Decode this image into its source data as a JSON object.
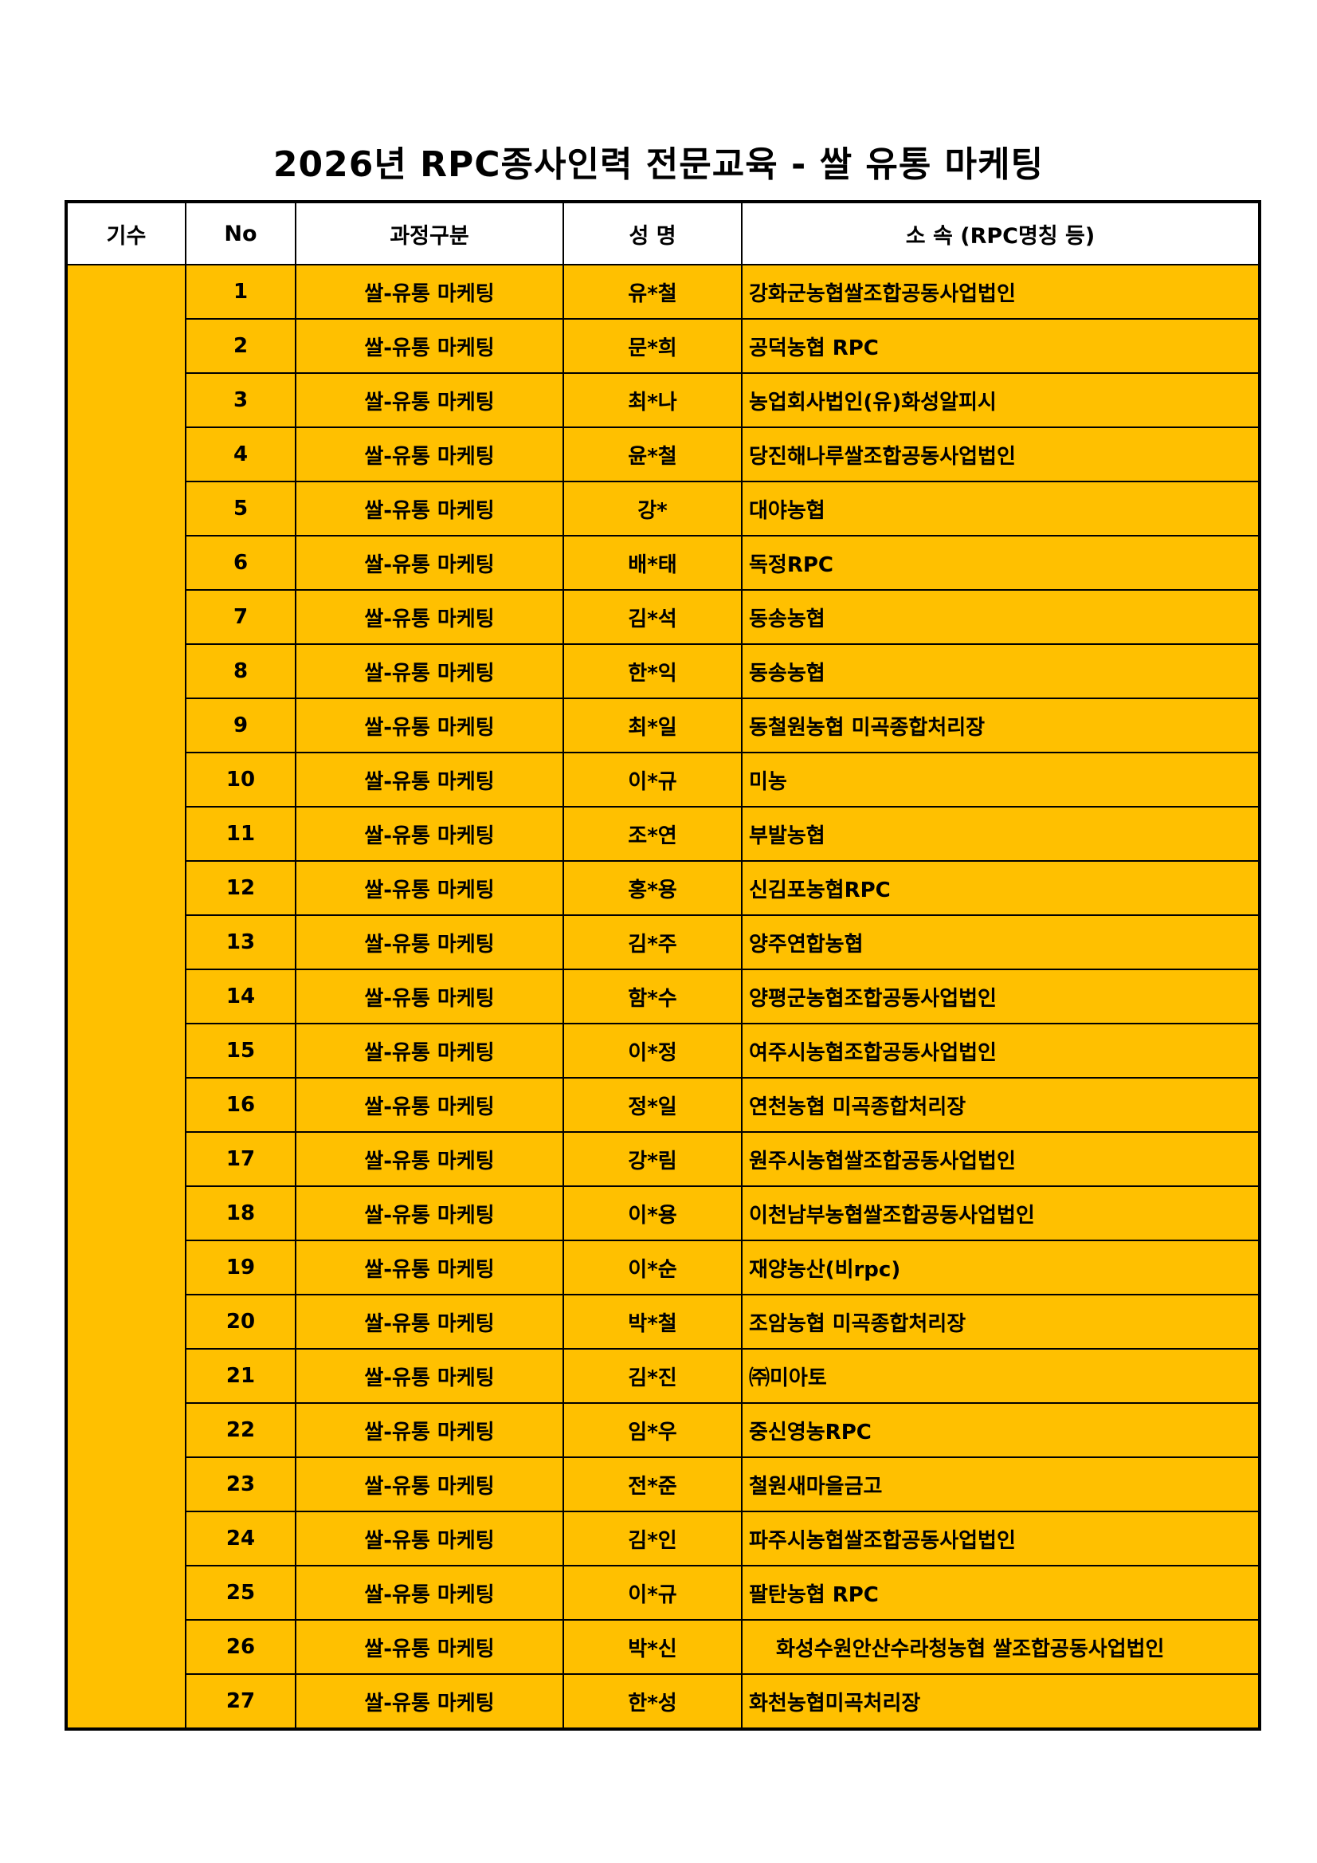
{
  "title": "2026년 RPC종사인력 전문교육 - 쌀 유통 마케팅",
  "table": {
    "headers": [
      "기수",
      "No",
      "과정구분",
      "성 명",
      "소 속 (RPC명칭 등)"
    ],
    "cohort": "",
    "highlight_color": "#FFC000",
    "rows": [
      {
        "no": "1",
        "course": "쌀-유통 마케팅",
        "name": "유*철",
        "affiliation": "강화군농협쌀조합공동사업법인"
      },
      {
        "no": "2",
        "course": "쌀-유통 마케팅",
        "name": "문*희",
        "affiliation": "공덕농협 RPC"
      },
      {
        "no": "3",
        "course": "쌀-유통 마케팅",
        "name": "최*나",
        "affiliation": "농업회사법인(유)화성알피시"
      },
      {
        "no": "4",
        "course": "쌀-유통 마케팅",
        "name": "윤*철",
        "affiliation": "당진해나루쌀조합공동사업법인"
      },
      {
        "no": "5",
        "course": "쌀-유통 마케팅",
        "name": "강*",
        "affiliation": "대야농협"
      },
      {
        "no": "6",
        "course": "쌀-유통 마케팅",
        "name": "배*태",
        "affiliation": "독정RPC"
      },
      {
        "no": "7",
        "course": "쌀-유통 마케팅",
        "name": "김*석",
        "affiliation": "동송농협"
      },
      {
        "no": "8",
        "course": "쌀-유통 마케팅",
        "name": "한*익",
        "affiliation": "동송농협"
      },
      {
        "no": "9",
        "course": "쌀-유통 마케팅",
        "name": "최*일",
        "affiliation": "동철원농협 미곡종합처리장"
      },
      {
        "no": "10",
        "course": "쌀-유통 마케팅",
        "name": "이*규",
        "affiliation": "미농"
      },
      {
        "no": "11",
        "course": "쌀-유통 마케팅",
        "name": "조*연",
        "affiliation": "부발농협"
      },
      {
        "no": "12",
        "course": "쌀-유통 마케팅",
        "name": "홍*용",
        "affiliation": "신김포농협RPC"
      },
      {
        "no": "13",
        "course": "쌀-유통 마케팅",
        "name": "김*주",
        "affiliation": "양주연합농협"
      },
      {
        "no": "14",
        "course": "쌀-유통 마케팅",
        "name": "함*수",
        "affiliation": "양평군농협조합공동사업법인"
      },
      {
        "no": "15",
        "course": "쌀-유통 마케팅",
        "name": "이*정",
        "affiliation": "여주시농협조합공동사업법인"
      },
      {
        "no": "16",
        "course": "쌀-유통 마케팅",
        "name": "정*일",
        "affiliation": "연천농협 미곡종합처리장"
      },
      {
        "no": "17",
        "course": "쌀-유통 마케팅",
        "name": "강*림",
        "affiliation": "원주시농협쌀조합공동사업법인"
      },
      {
        "no": "18",
        "course": "쌀-유통 마케팅",
        "name": "이*용",
        "affiliation": "이천남부농협쌀조합공동사업법인"
      },
      {
        "no": "19",
        "course": "쌀-유통 마케팅",
        "name": "이*순",
        "affiliation": "재양농산(비rpc)"
      },
      {
        "no": "20",
        "course": "쌀-유통 마케팅",
        "name": "박*철",
        "affiliation": "조암농협 미곡종합처리장"
      },
      {
        "no": "21",
        "course": "쌀-유통 마케팅",
        "name": "김*진",
        "affiliation": "㈜미아토"
      },
      {
        "no": "22",
        "course": "쌀-유통 마케팅",
        "name": "임*우",
        "affiliation": "중신영농RPC"
      },
      {
        "no": "23",
        "course": "쌀-유통 마케팅",
        "name": "전*준",
        "affiliation": "철원새마을금고"
      },
      {
        "no": "24",
        "course": "쌀-유통 마케팅",
        "name": "김*인",
        "affiliation": "파주시농협쌀조합공동사업법인"
      },
      {
        "no": "25",
        "course": "쌀-유통 마케팅",
        "name": "이*규",
        "affiliation": "팔탄농협 RPC"
      },
      {
        "no": "26",
        "course": "쌀-유통 마케팅",
        "name": "박*신",
        "affiliation": "화성수원안산수라청농협 쌀조합공동사업법인"
      },
      {
        "no": "27",
        "course": "쌀-유통 마케팅",
        "name": "한*성",
        "affiliation": "화천농협미곡처리장"
      }
    ]
  }
}
